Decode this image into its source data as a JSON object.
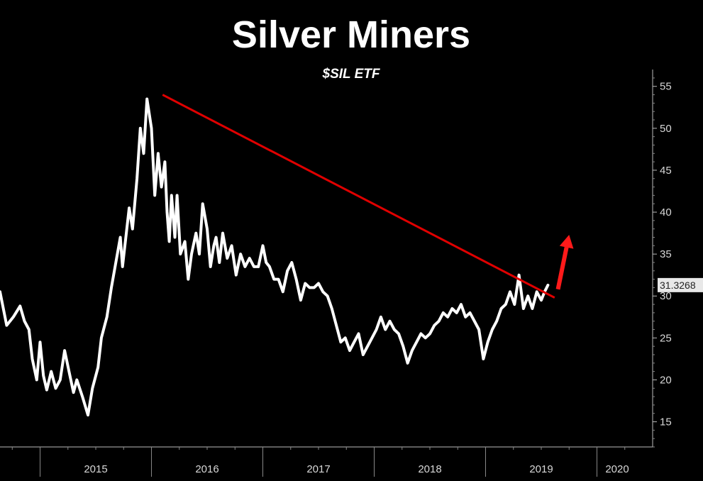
{
  "chart_data": {
    "type": "line",
    "title": "Silver Miners",
    "subtitle": "$SIL ETF",
    "xlabel": "",
    "ylabel": "",
    "x_tick_labels": [
      "2015",
      "2016",
      "2017",
      "2018",
      "2019",
      "2020"
    ],
    "y_ticks": [
      15,
      20,
      25,
      30,
      35,
      40,
      45,
      50,
      55
    ],
    "ylim": [
      12,
      56.5
    ],
    "xlim": [
      2014.64,
      2020.5
    ],
    "grid": false,
    "last_value_label": "31.3268",
    "series": [
      {
        "color": "#ffffff",
        "x": [
          2014.64,
          2014.7,
          2014.76,
          2014.82,
          2014.86,
          2014.9,
          2014.93,
          2014.97,
          2015.0,
          2015.03,
          2015.06,
          2015.1,
          2015.14,
          2015.18,
          2015.22,
          2015.26,
          2015.3,
          2015.33,
          2015.38,
          2015.43,
          2015.47,
          2015.52,
          2015.55,
          2015.6,
          2015.64,
          2015.68,
          2015.72,
          2015.74,
          2015.77,
          2015.8,
          2015.83,
          2015.87,
          2015.9,
          2015.93,
          2015.96,
          2016.0,
          2016.03,
          2016.06,
          2016.09,
          2016.12,
          2016.14,
          2016.16,
          2016.18,
          2016.21,
          2016.23,
          2016.26,
          2016.3,
          2016.33,
          2016.36,
          2016.4,
          2016.43,
          2016.46,
          2016.5,
          2016.53,
          2016.56,
          2016.58,
          2016.61,
          2016.64,
          2016.68,
          2016.72,
          2016.76,
          2016.8,
          2016.84,
          2016.88,
          2016.92,
          2016.96,
          2017.0,
          2017.03,
          2017.06,
          2017.1,
          2017.14,
          2017.18,
          2017.22,
          2017.26,
          2017.3,
          2017.34,
          2017.38,
          2017.42,
          2017.46,
          2017.5,
          2017.54,
          2017.58,
          2017.62,
          2017.66,
          2017.7,
          2017.74,
          2017.78,
          2017.82,
          2017.86,
          2017.9,
          2017.94,
          2017.98,
          2018.02,
          2018.06,
          2018.1,
          2018.14,
          2018.18,
          2018.22,
          2018.26,
          2018.3,
          2018.34,
          2018.38,
          2018.42,
          2018.46,
          2018.5,
          2018.54,
          2018.58,
          2018.62,
          2018.66,
          2018.7,
          2018.74,
          2018.78,
          2018.82,
          2018.86,
          2018.9,
          2018.94,
          2018.98,
          2019.02,
          2019.06,
          2019.1,
          2019.14,
          2019.18,
          2019.22,
          2019.26,
          2019.3,
          2019.34,
          2019.38,
          2019.42,
          2019.46,
          2019.5,
          2019.53,
          2019.56
        ],
        "values": [
          30.5,
          26.5,
          27.5,
          28.8,
          27.0,
          26.0,
          22.5,
          20.0,
          24.5,
          20.5,
          18.8,
          21.0,
          19.0,
          20.0,
          23.5,
          21.0,
          18.5,
          20.0,
          18.0,
          15.8,
          19.0,
          21.5,
          25.0,
          27.5,
          31.0,
          34.0,
          37.0,
          33.5,
          37.0,
          40.5,
          38.0,
          44.0,
          50.0,
          47.0,
          53.5,
          50.0,
          42.0,
          47.0,
          43.0,
          46.0,
          40.0,
          36.5,
          42.0,
          37.0,
          42.0,
          35.0,
          36.5,
          32.0,
          35.0,
          37.5,
          35.0,
          41.0,
          38.0,
          33.5,
          36.0,
          37.0,
          34.0,
          37.5,
          34.5,
          36.0,
          32.5,
          35.0,
          33.5,
          34.5,
          33.5,
          33.5,
          36.0,
          34.0,
          33.5,
          32.0,
          32.0,
          30.5,
          33.0,
          34.0,
          32.0,
          29.5,
          31.5,
          31.0,
          31.0,
          31.5,
          30.5,
          30.0,
          28.5,
          26.5,
          24.5,
          25.0,
          23.5,
          24.5,
          25.5,
          23.0,
          24.0,
          25.0,
          26.0,
          27.5,
          26.0,
          27.0,
          26.0,
          25.5,
          24.0,
          22.0,
          23.5,
          24.5,
          25.5,
          25.0,
          25.5,
          26.5,
          27.0,
          28.0,
          27.5,
          28.5,
          28.0,
          29.0,
          27.5,
          28.0,
          27.0,
          26.0,
          22.5,
          24.5,
          26.0,
          27.0,
          28.5,
          29.0,
          30.5,
          29.0,
          32.5,
          28.5,
          30.0,
          28.5,
          30.5,
          29.5,
          30.5,
          31.3
        ]
      }
    ],
    "trendline": {
      "color": "#e00000",
      "from": [
        2016.1,
        54.0
      ],
      "to": [
        2019.62,
        29.8
      ]
    },
    "arrow": {
      "color": "#ff1a1a",
      "from": [
        2019.65,
        30.8
      ],
      "to": [
        2019.75,
        37.3
      ]
    }
  }
}
